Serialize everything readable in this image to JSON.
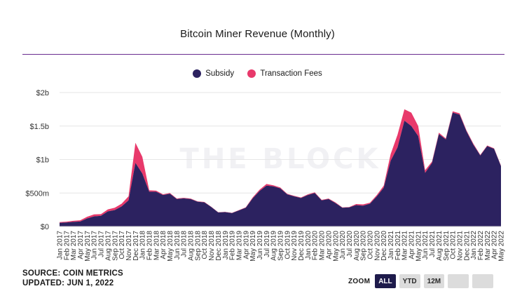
{
  "colors": {
    "subsidy": "#2c2260",
    "fees": "#e8396b",
    "grid": "#e6e6e6"
  },
  "watermark": "THE BLOCK",
  "source": "SOURCE: COIN METRICS",
  "updated": "UPDATED: JUN 1, 2022",
  "zoom": {
    "label": "ZOOM",
    "buttons": [
      {
        "label": "ALL",
        "active": true
      },
      {
        "label": "YTD",
        "active": false
      },
      {
        "label": "12M",
        "active": false
      },
      {
        "label": "",
        "active": false
      },
      {
        "label": "",
        "active": false
      }
    ]
  },
  "chart_data": {
    "type": "area",
    "stacked": true,
    "title": "Bitcoin Miner Revenue (Monthly)",
    "legend_position": "top-center",
    "grid": true,
    "ylim": [
      0,
      2000
    ],
    "yticks": [
      {
        "value": 0,
        "label": "$0"
      },
      {
        "value": 500,
        "label": "$500m"
      },
      {
        "value": 1000,
        "label": "$1b"
      },
      {
        "value": 1500,
        "label": "$1.5b"
      },
      {
        "value": 2000,
        "label": "$2b"
      }
    ],
    "x": [
      "Jan 2017",
      "Feb 2017",
      "Mar 2017",
      "Apr 2017",
      "May 2017",
      "Jun 2017",
      "Jul 2017",
      "Aug 2017",
      "Sep 2017",
      "Oct 2017",
      "Nov 2017",
      "Dec 2017",
      "Jan 2018",
      "Feb 2018",
      "Mar 2018",
      "Apr 2018",
      "May 2018",
      "Jun 2018",
      "Jul 2018",
      "Aug 2018",
      "Sep 2018",
      "Oct 2018",
      "Nov 2018",
      "Dec 2018",
      "Jan 2019",
      "Feb 2019",
      "Mar 2019",
      "Apr 2019",
      "May 2019",
      "Jun 2019",
      "Jul 2019",
      "Aug 2019",
      "Sep 2019",
      "Oct 2019",
      "Nov 2019",
      "Dec 2019",
      "Jan 2020",
      "Feb 2020",
      "Mar 2020",
      "Apr 2020",
      "May 2020",
      "Jun 2020",
      "Jul 2020",
      "Aug 2020",
      "Sep 2020",
      "Oct 2020",
      "Nov 2020",
      "Dec 2020",
      "Jan 2021",
      "Feb 2021",
      "Mar 2021",
      "Apr 2021",
      "May 2021",
      "Jun 2021",
      "Jul 2021",
      "Aug 2021",
      "Sep 2021",
      "Oct 2021",
      "Nov 2021",
      "Dec 2021",
      "Jan 2022",
      "Feb 2022",
      "Mar 2022",
      "Apr 2022",
      "May 2022"
    ],
    "series": [
      {
        "name": "Subsidy",
        "values": [
          55,
          60,
          70,
          75,
          120,
          150,
          160,
          225,
          245,
          300,
          390,
          950,
          790,
          520,
          520,
          470,
          490,
          410,
          420,
          410,
          370,
          360,
          290,
          210,
          215,
          200,
          240,
          280,
          420,
          530,
          610,
          600,
          570,
          480,
          450,
          425,
          470,
          500,
          390,
          410,
          350,
          280,
          285,
          320,
          310,
          340,
          450,
          580,
          980,
          1180,
          1580,
          1500,
          1350,
          800,
          950,
          1380,
          1300,
          1700,
          1670,
          1420,
          1220,
          1060,
          1200,
          1160,
          900
        ]
      },
      {
        "name": "Transaction Fees",
        "values": [
          10,
          12,
          15,
          18,
          25,
          30,
          25,
          30,
          35,
          40,
          60,
          300,
          250,
          20,
          15,
          10,
          10,
          8,
          8,
          8,
          6,
          6,
          5,
          4,
          4,
          4,
          5,
          6,
          15,
          20,
          25,
          15,
          12,
          8,
          8,
          8,
          10,
          10,
          8,
          8,
          10,
          5,
          5,
          15,
          20,
          15,
          20,
          30,
          100,
          190,
          170,
          200,
          150,
          40,
          20,
          20,
          15,
          20,
          20,
          15,
          15,
          10,
          10,
          8,
          10
        ]
      }
    ]
  }
}
